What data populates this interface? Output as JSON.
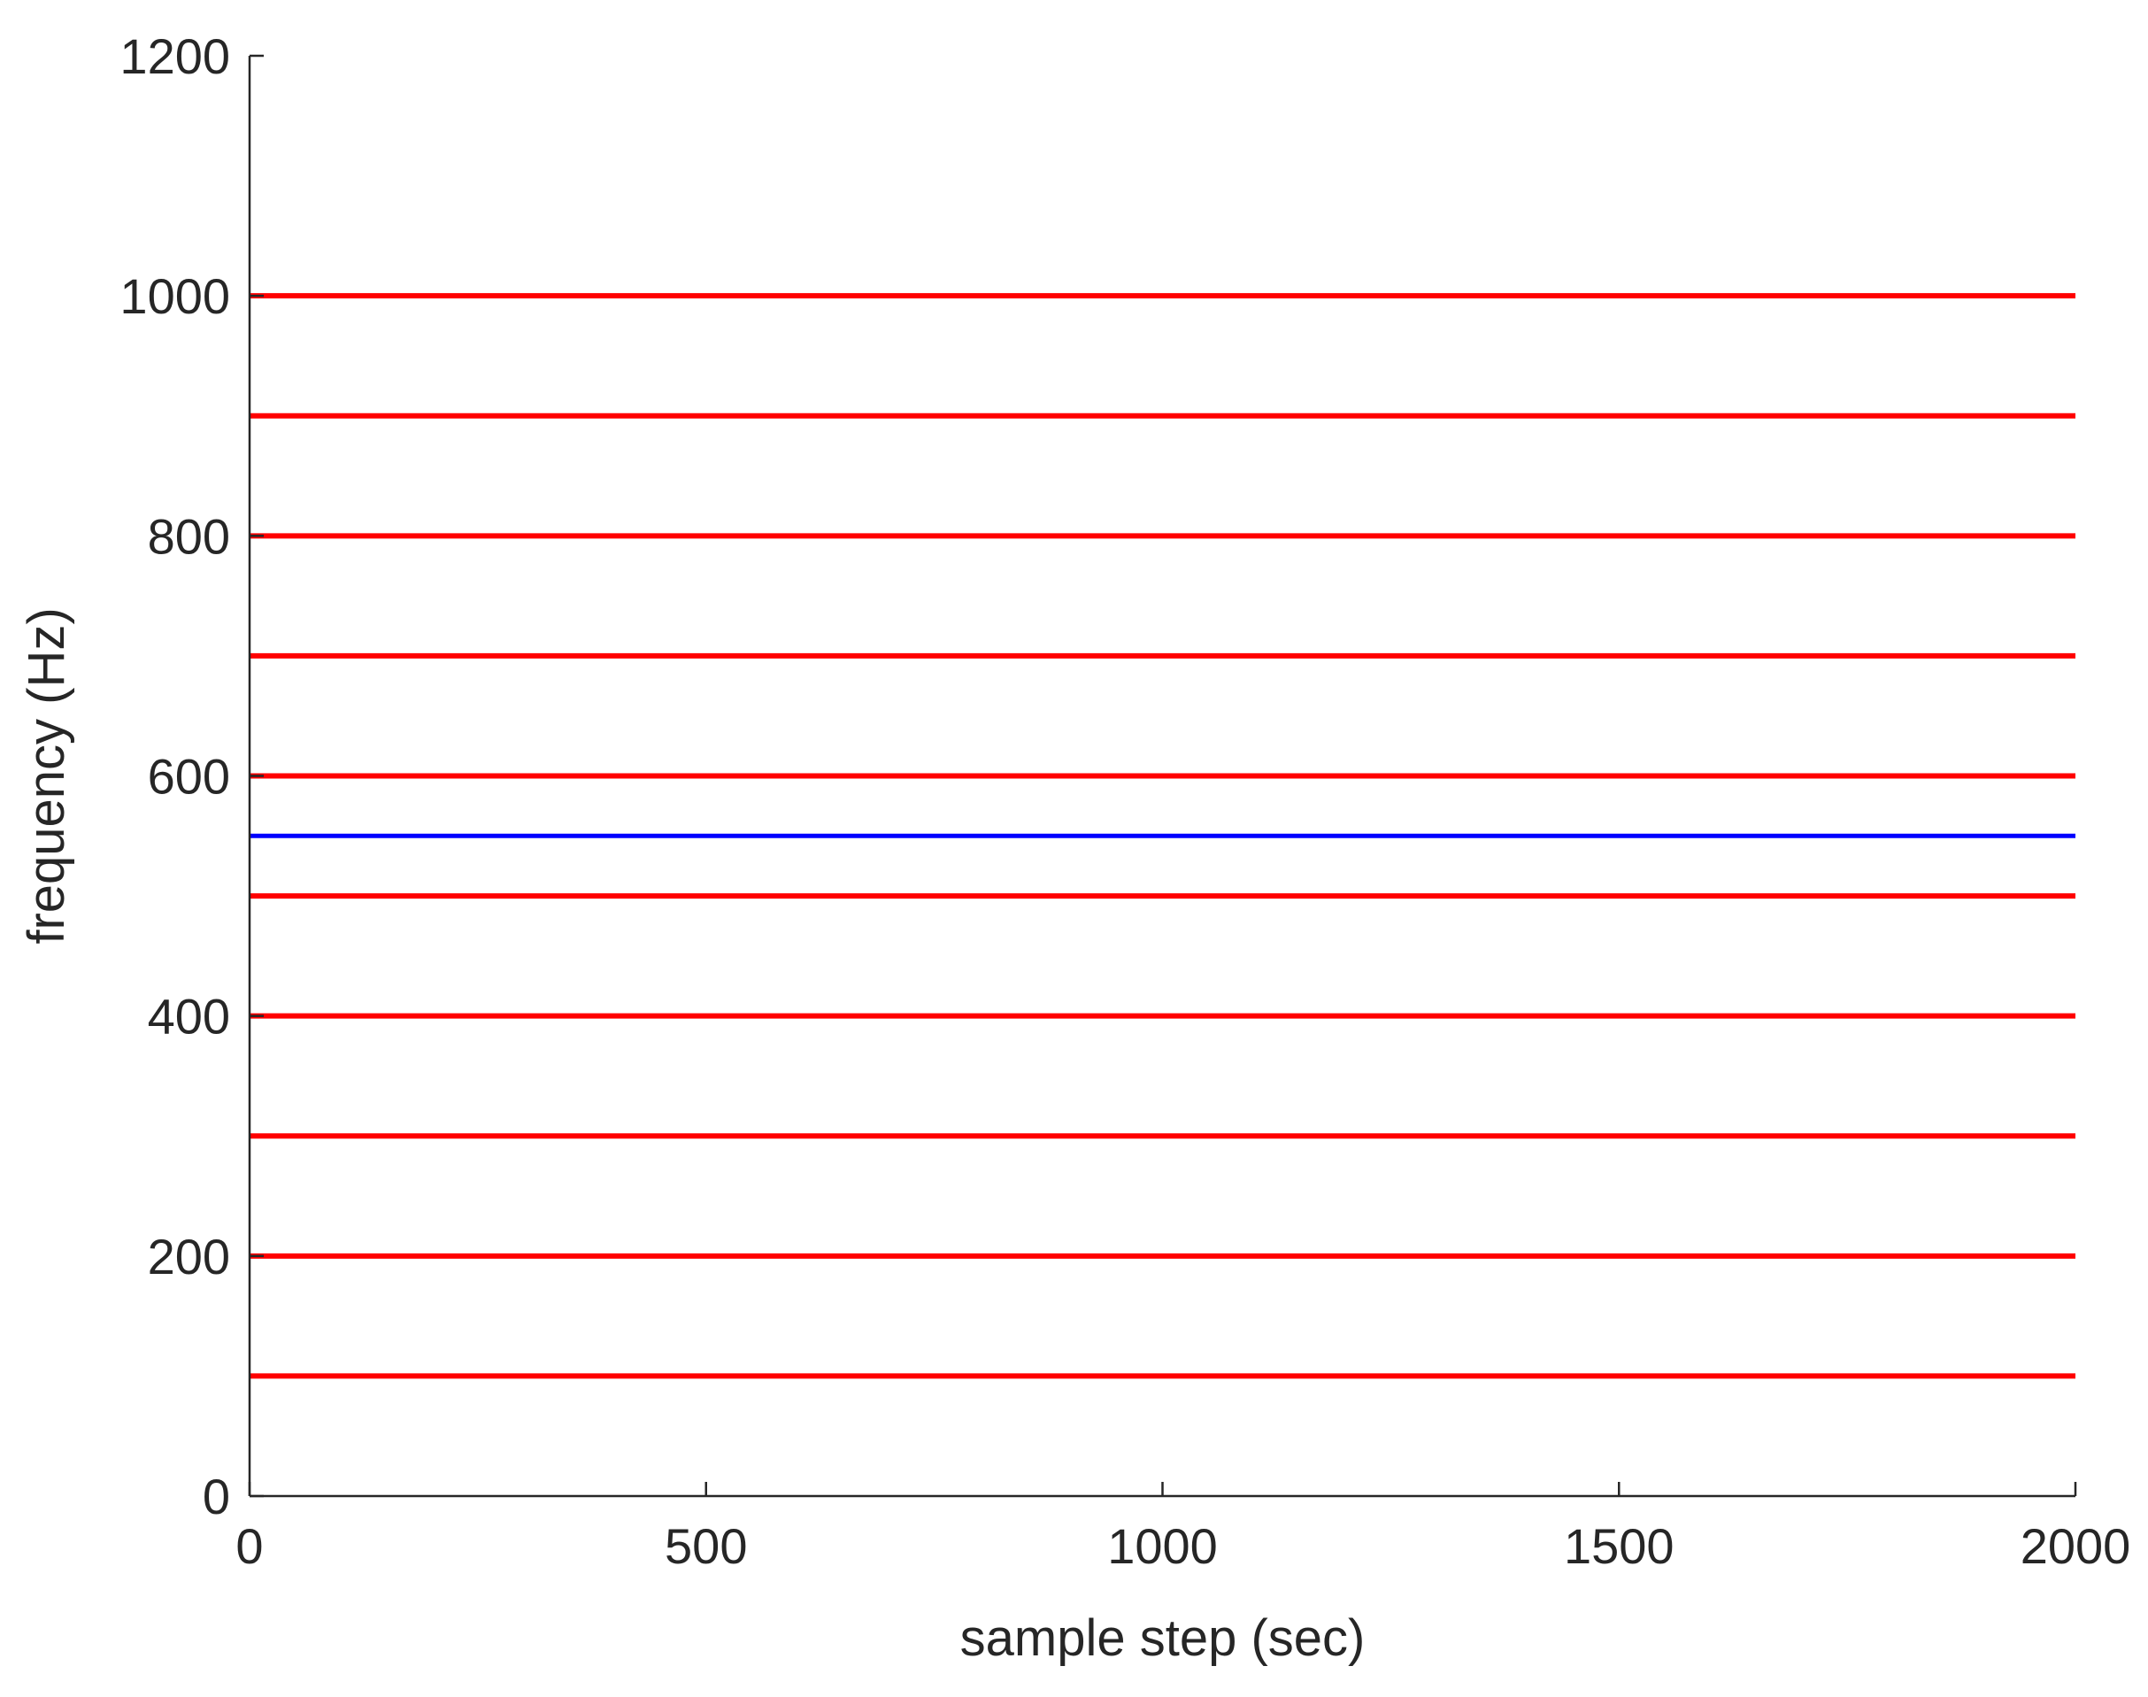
{
  "chart_data": {
    "type": "line",
    "title": "",
    "xlabel": "sample step (sec)",
    "ylabel": "frequency (Hz)",
    "xlim": [
      0,
      2000
    ],
    "ylim": [
      0,
      1200
    ],
    "xticks": [
      "0",
      "500",
      "1000",
      "1500",
      "2000"
    ],
    "yticks": [
      "0",
      "200",
      "400",
      "600",
      "800",
      "1000",
      "1200"
    ],
    "grid": false,
    "legend": "none",
    "series": [
      {
        "x": [
          0,
          2000
        ],
        "values": [
          100,
          100
        ],
        "color": "#ff0000"
      },
      {
        "x": [
          0,
          2000
        ],
        "values": [
          200,
          200
        ],
        "color": "#ff0000"
      },
      {
        "x": [
          0,
          2000
        ],
        "values": [
          300,
          300
        ],
        "color": "#ff0000"
      },
      {
        "x": [
          0,
          2000
        ],
        "values": [
          400,
          400
        ],
        "color": "#ff0000"
      },
      {
        "x": [
          0,
          2000
        ],
        "values": [
          500,
          500
        ],
        "color": "#ff0000"
      },
      {
        "x": [
          0,
          2000
        ],
        "values": [
          600,
          600
        ],
        "color": "#ff0000"
      },
      {
        "x": [
          0,
          2000
        ],
        "values": [
          700,
          700
        ],
        "color": "#ff0000"
      },
      {
        "x": [
          0,
          2000
        ],
        "values": [
          800,
          800
        ],
        "color": "#ff0000"
      },
      {
        "x": [
          0,
          2000
        ],
        "values": [
          900,
          900
        ],
        "color": "#ff0000"
      },
      {
        "x": [
          0,
          2000
        ],
        "values": [
          1000,
          1000
        ],
        "color": "#ff0000"
      },
      {
        "x": [
          0,
          2000
        ],
        "values": [
          550,
          550
        ],
        "color": "#0000ff"
      }
    ]
  },
  "colors": {
    "axis": "#262626",
    "harmonic_lines": "#ff0000",
    "tracked_line": "#0000ff"
  }
}
